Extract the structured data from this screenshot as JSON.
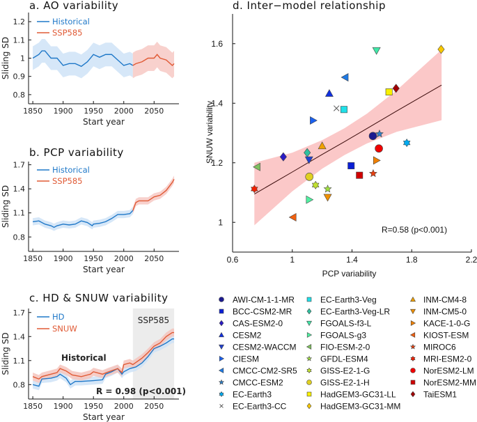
{
  "chart_data": [
    {
      "type": "line",
      "title": "a. AO variability",
      "xlabel": "Start year",
      "ylabel": "Sliding SD",
      "xlim": [
        1843,
        2091
      ],
      "ylim": [
        0.75,
        1.25
      ],
      "xticks": [
        1850,
        1900,
        1950,
        2000,
        2050
      ],
      "yticks": [
        0.8,
        0.9,
        1,
        1.1,
        1.2
      ],
      "legend": "top-left",
      "series": [
        {
          "name": "Historical",
          "color": "#1f78c8",
          "band_color": "#cfe3f7",
          "band_halfwidth": 0.065,
          "x": [
            1850,
            1860,
            1865,
            1870,
            1880,
            1890,
            1900,
            1910,
            1920,
            1930,
            1940,
            1950,
            1960,
            1970,
            1980,
            1990,
            2000,
            2010,
            2015
          ],
          "y": [
            1.0,
            1.02,
            1.04,
            1.04,
            1.0,
            1.0,
            0.96,
            0.97,
            0.97,
            0.955,
            0.98,
            1.02,
            1.005,
            1.02,
            1.02,
            0.99,
            0.96,
            0.97,
            0.96
          ]
        },
        {
          "name": "SSP585",
          "color": "#e05a35",
          "band_color": "#f7c9c4",
          "band_halfwidth": 0.07,
          "x": [
            2015,
            2020,
            2030,
            2040,
            2050,
            2055,
            2060,
            2070,
            2080,
            2083
          ],
          "y": [
            0.96,
            0.97,
            0.98,
            1.0,
            1.0,
            1.02,
            1.0,
            0.99,
            0.96,
            0.97
          ]
        }
      ]
    },
    {
      "type": "line",
      "title": "b. PCP variability",
      "xlabel": "Start year",
      "ylabel": "Sliding SD",
      "xlim": [
        1843,
        2091
      ],
      "ylim": [
        0.62,
        1.74
      ],
      "xticks": [
        1850,
        1900,
        1950,
        2000,
        2050
      ],
      "yticks": [
        0.8,
        1.1,
        1.4,
        1.7
      ],
      "legend": "top-left",
      "series": [
        {
          "name": "Historical",
          "color": "#1f78c8",
          "band_color": "#cfe3f7",
          "band_halfwidth": 0.045,
          "x": [
            1850,
            1860,
            1870,
            1880,
            1885,
            1890,
            1900,
            1910,
            1920,
            1930,
            1940,
            1948,
            1950,
            1960,
            1970,
            1980,
            1990,
            2000,
            2010,
            2015
          ],
          "y": [
            0.99,
            1.0,
            0.96,
            0.94,
            0.92,
            0.94,
            0.96,
            0.95,
            0.96,
            1.0,
            0.98,
            0.94,
            0.96,
            0.97,
            0.99,
            1.03,
            1.08,
            1.08,
            1.09,
            1.13
          ]
        },
        {
          "name": "SSP585",
          "color": "#e05a35",
          "band_color": "#f7c9c4",
          "band_halfwidth": 0.045,
          "x": [
            2015,
            2020,
            2025,
            2040,
            2050,
            2060,
            2070,
            2080,
            2083
          ],
          "y": [
            1.13,
            1.23,
            1.25,
            1.25,
            1.3,
            1.32,
            1.38,
            1.48,
            1.52
          ]
        }
      ]
    },
    {
      "type": "line",
      "title": "c. HD & SNUW variability",
      "xlabel": "Start year",
      "ylabel": "Sliding SD",
      "xlim": [
        1843,
        2091
      ],
      "ylim": [
        0.62,
        1.75
      ],
      "xticks": [
        1850,
        1900,
        1950,
        2000,
        2050
      ],
      "yticks": [
        0.8,
        1.1,
        1.4,
        1.7
      ],
      "legend": "top-left",
      "shaded_period": {
        "label": "SSP585",
        "x": [
          2015,
          2083
        ],
        "color": "#ececec"
      },
      "annotations": {
        "historical": "Historical",
        "correlation": "R = 0.98 (p<0.001)"
      },
      "series": [
        {
          "name": "HD",
          "color": "#1f78c8",
          "band_color": "#cfe3f7",
          "band_halfwidth": 0.05,
          "x": [
            1850,
            1860,
            1865,
            1880,
            1890,
            1895,
            1905,
            1912,
            1920,
            1930,
            1950,
            1965,
            1970,
            1980,
            1990,
            1997,
            2000,
            2010,
            2020,
            2030,
            2040,
            2050,
            2060,
            2070,
            2080,
            2083
          ],
          "y": [
            0.8,
            0.78,
            0.87,
            0.88,
            0.9,
            0.93,
            0.88,
            0.8,
            0.84,
            0.84,
            0.85,
            0.86,
            0.93,
            0.96,
            1.0,
            0.93,
            0.96,
            1.0,
            1.02,
            1.07,
            1.15,
            1.25,
            1.28,
            1.32,
            1.37,
            1.37
          ]
        },
        {
          "name": "SNUW",
          "color": "#e05a35",
          "band_color": "#f5c4bd",
          "band_halfwidth": 0.05,
          "x": [
            1850,
            1860,
            1865,
            1880,
            1890,
            1895,
            1905,
            1915,
            1930,
            1945,
            1950,
            1965,
            1975,
            1990,
            1997,
            2000,
            2010,
            2015,
            2030,
            2040,
            2050,
            2060,
            2070,
            2080,
            2083
          ],
          "y": [
            0.9,
            0.87,
            0.9,
            0.93,
            0.95,
            1.0,
            0.97,
            0.92,
            0.9,
            0.93,
            0.96,
            0.93,
            0.96,
            1.0,
            0.95,
            1.05,
            1.07,
            1.05,
            1.13,
            1.2,
            1.28,
            1.32,
            1.4,
            1.45,
            1.45
          ]
        }
      ]
    },
    {
      "type": "scatter",
      "title": "d. Inter−model relationship",
      "xlabel": "PCP variability",
      "ylabel": "SNUW variability",
      "xlim": [
        0.6,
        2.2
      ],
      "ylim": [
        0.9,
        1.7
      ],
      "xticks": [
        0.6,
        1,
        1.4,
        1.8,
        2.2
      ],
      "yticks": [
        1,
        1.2,
        1.4,
        1.6
      ],
      "annotation": "R=0.58 (p<0.001)",
      "regression": {
        "color": "#3a0a0a",
        "band_color": "#fbc8c8",
        "x": [
          0.746,
          1.0,
          1.2,
          1.35,
          1.5,
          1.7,
          2.0
        ],
        "y": [
          1.095,
          1.169,
          1.228,
          1.271,
          1.315,
          1.374,
          1.461
        ],
        "lower": [
          0.99,
          1.104,
          1.18,
          1.226,
          1.265,
          1.304,
          1.343
        ],
        "upper": [
          1.2,
          1.234,
          1.276,
          1.316,
          1.365,
          1.444,
          1.58
        ]
      },
      "legend": "below",
      "points": [
        {
          "name": "AWI-CM-1-1-MR",
          "marker": "circle",
          "color": "#1c1a8f",
          "x": 1.54,
          "y": 1.29
        },
        {
          "name": "BCC-CSM2-MR",
          "marker": "square",
          "color": "#0a1fd6",
          "x": 1.394,
          "y": 1.19
        },
        {
          "name": "CAS-ESM2-0",
          "marker": "diamond",
          "color": "#2a1bc4",
          "x": 0.94,
          "y": 1.22
        },
        {
          "name": "CESM2",
          "marker": "triangle-up",
          "color": "#1030e0",
          "x": 1.248,
          "y": 1.433
        },
        {
          "name": "CESM2-WACCM",
          "marker": "triangle-down",
          "color": "#2040d0",
          "x": 1.112,
          "y": 1.21
        },
        {
          "name": "CIESM",
          "marker": "triangle-right",
          "color": "#1a60f0",
          "x": 1.14,
          "y": 1.342
        },
        {
          "name": "CMCC-CM2-SR5",
          "marker": "triangle-left",
          "color": "#1e7ae6",
          "x": 1.354,
          "y": 1.487
        },
        {
          "name": "CMCC-ESM2",
          "marker": "star",
          "color": "#2f80c8",
          "x": 1.584,
          "y": 1.297
        },
        {
          "name": "EC-Earth3",
          "marker": "hexagram",
          "color": "#00aaf0",
          "x": 1.767,
          "y": 1.267
        },
        {
          "name": "EC-Earth3-CC",
          "marker": "x",
          "color": "#555555",
          "x": 1.296,
          "y": 1.383
        },
        {
          "name": "EC-Earth3-Veg",
          "marker": "square",
          "color": "#20e0e8",
          "x": 1.346,
          "y": 1.379
        },
        {
          "name": "EC-Earth3-Veg-LR",
          "marker": "diamond",
          "color": "#30c0a0",
          "x": 1.1,
          "y": 1.234
        },
        {
          "name": "FGOALS-f3-L",
          "marker": "triangle-down",
          "color": "#40e8a8",
          "x": 1.564,
          "y": 1.577
        },
        {
          "name": "FGOALS-g3",
          "marker": "triangle-right",
          "color": "#50f0a0",
          "x": 1.114,
          "y": 1.076
        },
        {
          "name": "FIO-ESM-2-0",
          "marker": "triangle-left",
          "color": "#80c060",
          "x": 0.764,
          "y": 1.186
        },
        {
          "name": "GFDL-ESM4",
          "marker": "star",
          "color": "#a0e040",
          "x": 1.237,
          "y": 1.112
        },
        {
          "name": "GISS-E2-1-G",
          "marker": "hexagram",
          "color": "#c0e030",
          "x": 1.156,
          "y": 1.125
        },
        {
          "name": "GISS-E2-1-H",
          "marker": "circle",
          "color": "#e0d020",
          "x": 1.114,
          "y": 1.153
        },
        {
          "name": "HadGEM3-GC31-LL",
          "marker": "square",
          "color": "#f8f000",
          "x": 1.648,
          "y": 1.438
        },
        {
          "name": "HadGEM3-GC31-MM",
          "marker": "diamond",
          "color": "#f8c800",
          "x": 1.997,
          "y": 1.581
        },
        {
          "name": "INM-CM4-8",
          "marker": "triangle-up",
          "color": "#f0a000",
          "x": 1.2,
          "y": 1.257
        },
        {
          "name": "INM-CM5-0",
          "marker": "triangle-down",
          "color": "#f09000",
          "x": 1.237,
          "y": 1.084
        },
        {
          "name": "KACE-1-0-G",
          "marker": "triangle-right",
          "color": "#f08000",
          "x": 1.564,
          "y": 1.208
        },
        {
          "name": "KIOST-ESM",
          "marker": "triangle-left",
          "color": "#f06010",
          "x": 1.005,
          "y": 1.017
        },
        {
          "name": "MIROC6",
          "marker": "star",
          "color": "#e84010",
          "x": 1.542,
          "y": 1.164
        },
        {
          "name": "MRI-ESM2-0",
          "marker": "hexagram",
          "color": "#f02000",
          "x": 0.746,
          "y": 1.112
        },
        {
          "name": "NorESM2-LM",
          "marker": "circle",
          "color": "#f00000",
          "x": 1.58,
          "y": 1.248
        },
        {
          "name": "NorESM2-MM",
          "marker": "square",
          "color": "#d00000",
          "x": 1.45,
          "y": 1.158
        },
        {
          "name": "TaiESM1",
          "marker": "diamond",
          "color": "#a00000",
          "x": 1.695,
          "y": 1.45
        }
      ]
    }
  ]
}
